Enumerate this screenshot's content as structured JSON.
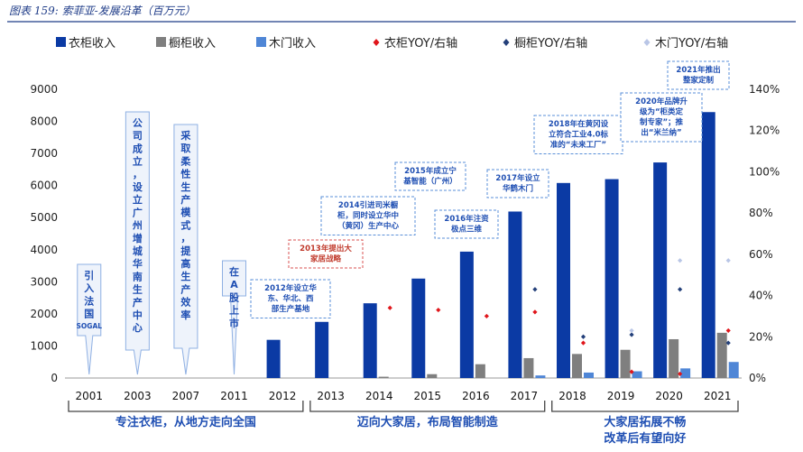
{
  "caption": "图表 159:  索菲亚-发展沿革（百万元）",
  "colors": {
    "wardrobe_bar": "#0b3aa4",
    "cabinet_bar": "#7f7f7f",
    "door_bar": "#4f86d6",
    "wardrobe_yoy": "#e0161b",
    "cabinet_yoy": "#24407a",
    "door_yoy": "#b9c6e6",
    "annotation": "#1f4fb3"
  },
  "legend": [
    {
      "key": "wardrobe_rev",
      "label": "衣柜收入",
      "marker": "square"
    },
    {
      "key": "cabinet_rev",
      "label": "橱柜收入",
      "marker": "square"
    },
    {
      "key": "door_rev",
      "label": "木门收入",
      "marker": "square"
    },
    {
      "key": "wardrobe_yoy",
      "label": "衣柜YOY/右轴",
      "marker": "diamond"
    },
    {
      "key": "cabinet_yoy",
      "label": "橱柜YOY/右轴",
      "marker": "diamond"
    },
    {
      "key": "door_yoy",
      "label": "木门YOY/右轴",
      "marker": "diamond"
    }
  ],
  "chart_data": {
    "type": "bar",
    "categories": [
      "2001",
      "2003",
      "2007",
      "2011",
      "2012",
      "2013",
      "2014",
      "2015",
      "2016",
      "2017",
      "2018",
      "2019",
      "2020",
      "2021"
    ],
    "y_left": {
      "min": 0,
      "max": 9000,
      "ticks": [
        0,
        1000,
        2000,
        3000,
        4000,
        5000,
        6000,
        7000,
        8000,
        9000
      ]
    },
    "y_right": {
      "min": 0,
      "max": 140,
      "ticks": [
        "0%",
        "20%",
        "40%",
        "60%",
        "80%",
        "100%",
        "120%",
        "140%"
      ]
    },
    "bar_series": [
      {
        "key": "wardrobe_rev",
        "name": "衣柜收入",
        "values": [
          null,
          null,
          null,
          null,
          1190,
          1750,
          2330,
          3100,
          3940,
          5190,
          6080,
          6200,
          6720,
          8290
        ]
      },
      {
        "key": "cabinet_rev",
        "name": "橱柜收入",
        "values": [
          null,
          null,
          null,
          null,
          null,
          null,
          40,
          120,
          430,
          620,
          750,
          880,
          1210,
          1410
        ]
      },
      {
        "key": "door_rev",
        "name": "木门收入",
        "values": [
          null,
          null,
          null,
          null,
          null,
          null,
          null,
          null,
          null,
          80,
          170,
          210,
          300,
          500
        ]
      }
    ],
    "line_series": [
      {
        "key": "wardrobe_yoy",
        "name": "衣柜YOY/右轴",
        "values": [
          null,
          null,
          null,
          null,
          null,
          null,
          34,
          33,
          30,
          32,
          17,
          3,
          2,
          23
        ]
      },
      {
        "key": "cabinet_yoy",
        "name": "橱柜YOY/右轴",
        "values": [
          null,
          null,
          null,
          null,
          null,
          null,
          null,
          null,
          null,
          43,
          20,
          21,
          43,
          17
        ]
      },
      {
        "key": "door_yoy",
        "name": "木门YOY/右轴",
        "values": [
          null,
          null,
          null,
          null,
          null,
          null,
          null,
          null,
          null,
          null,
          null,
          23,
          57,
          57
        ]
      }
    ]
  },
  "annotations": {
    "vertical": [
      {
        "cat": 0,
        "text": "引入法国",
        "tail": "SOGAL"
      },
      {
        "cat": 1,
        "text": "公司成立，设立广州增城华南生产中心"
      },
      {
        "cat": 2,
        "text": "采取柔性生产模式，提高生产效率"
      },
      {
        "cat": 3,
        "text": "在A股上市"
      }
    ],
    "boxes": [
      {
        "cat": 4,
        "lines": [
          "2012年设立华",
          "东、华北、西",
          "部生产基地"
        ],
        "style": "blue"
      },
      {
        "cat": 5,
        "lines": [
          "2013年提出大",
          "家居战略"
        ],
        "style": "red"
      },
      {
        "cat": 6,
        "lines": [
          "2014引进司米橱",
          "柜，同时设立华中",
          "（黄冈）生产中心"
        ],
        "style": "blue"
      },
      {
        "cat": 7,
        "lines": [
          "2015年成立宁",
          "基智能（广州）"
        ],
        "style": "blue"
      },
      {
        "cat": 8,
        "lines": [
          "2016年注资",
          "极点三维"
        ],
        "style": "blue"
      },
      {
        "cat": 9,
        "lines": [
          "2017年设立",
          "华鹤木门"
        ],
        "style": "blue"
      },
      {
        "cat": 10,
        "lines": [
          "2018年在黄冈设",
          "立符合工业4.0标",
          "准的“未来工厂”"
        ],
        "style": "blue"
      },
      {
        "cat": 12,
        "lines": [
          "2020年品牌升",
          "级为“柜类定",
          "制专家”；推",
          "出“米兰纳”"
        ],
        "style": "blue"
      },
      {
        "cat": 13,
        "lines": [
          "2021年推出",
          "整家定制"
        ],
        "style": "blue"
      }
    ]
  },
  "phases": [
    {
      "label": "专注衣柜，从地方走向全国",
      "from": 0,
      "to": 4
    },
    {
      "label": "迈向大家居，布局智能制造",
      "from": 5,
      "to": 9
    },
    {
      "label_lines": [
        "大家居拓展不畅",
        "改革后有望向好"
      ],
      "from": 10,
      "to": 13
    }
  ]
}
